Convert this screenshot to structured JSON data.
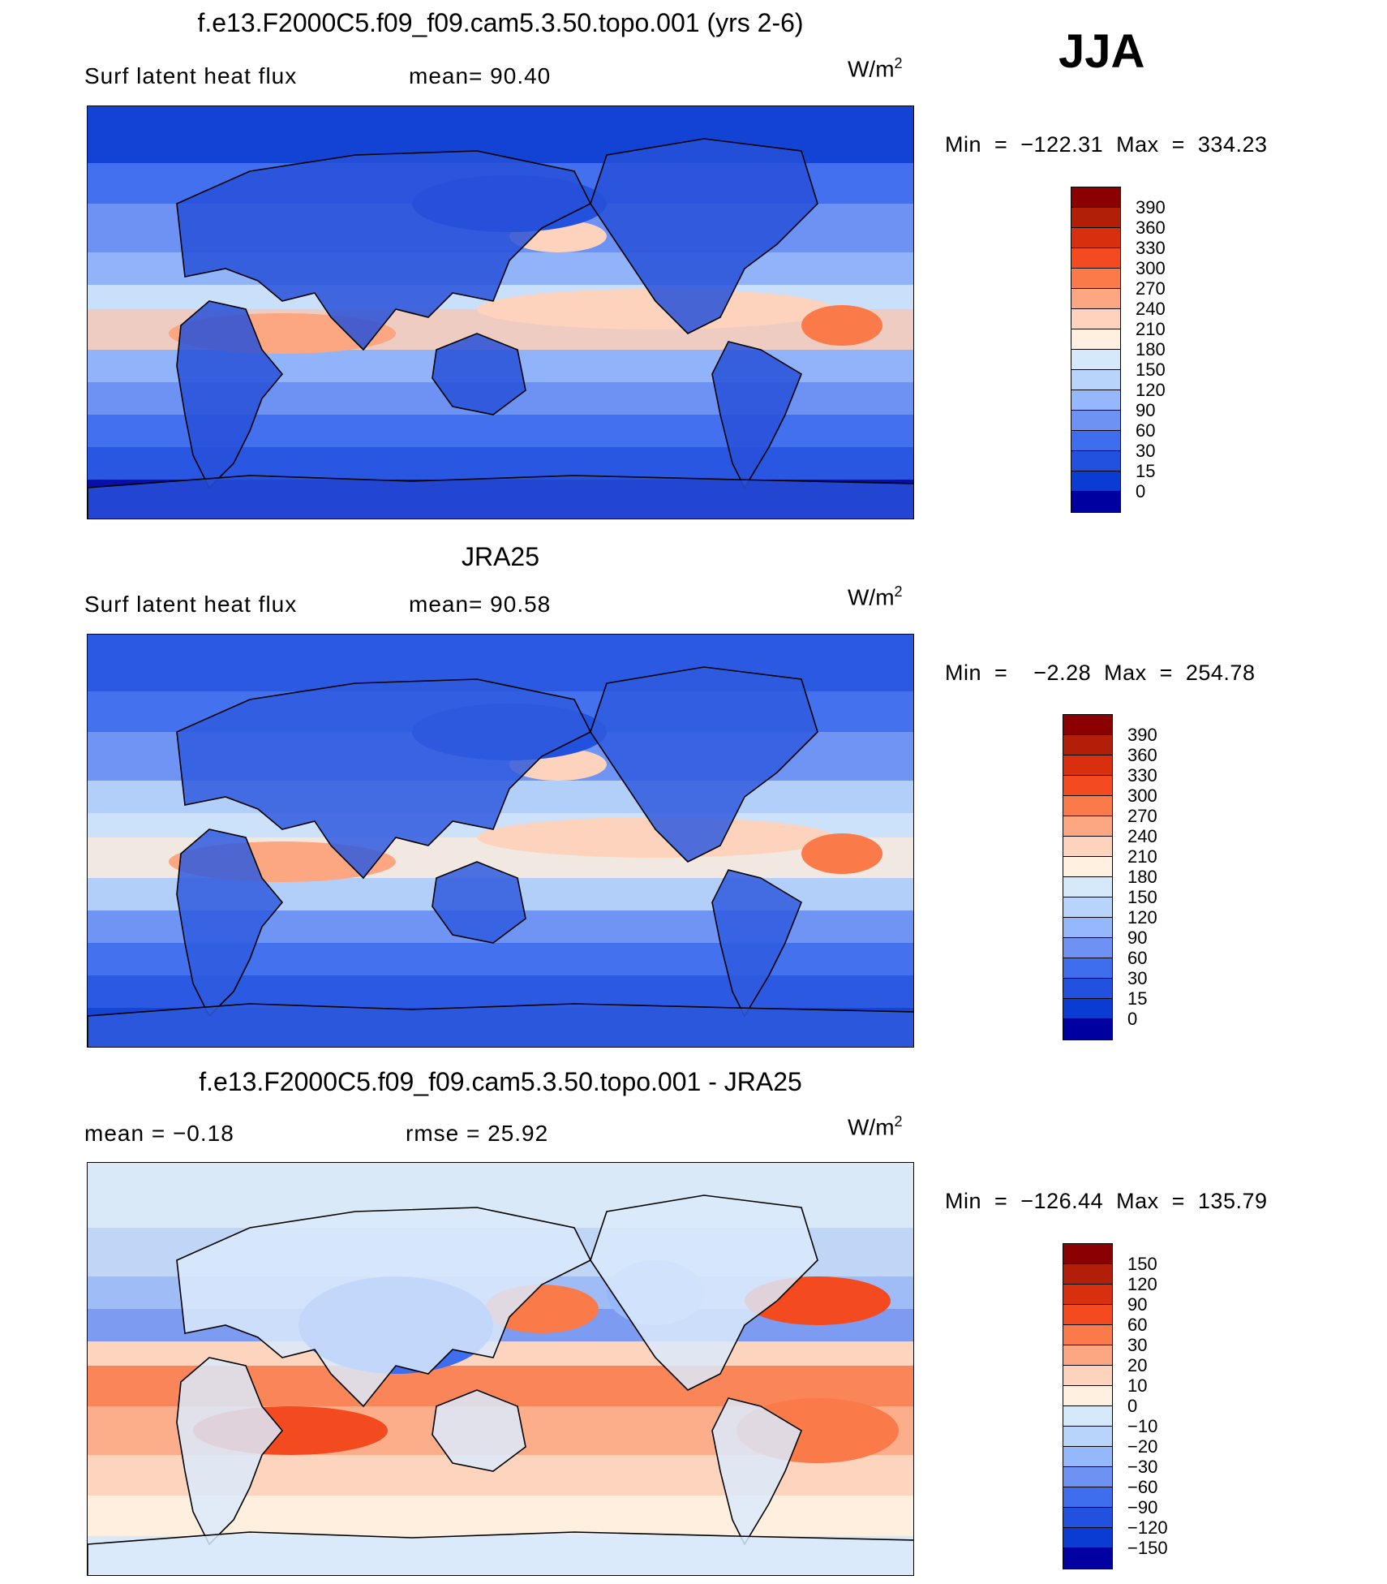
{
  "season": "JJA",
  "panels": [
    {
      "title": "f.e13.F2000C5.f09_f09.cam5.3.50.topo.001 (yrs 2-6)",
      "subtitle_left": "Surf  latent  heat  flux",
      "subtitle_mid": "mean=   90.40",
      "units_base": "W/m",
      "units_exp": "2",
      "minmax": "Min  =  −122.31  Max  =  334.23",
      "levels": [
        "390",
        "360",
        "330",
        "300",
        "270",
        "240",
        "210",
        "180",
        "150",
        "120",
        "90",
        "60",
        "30",
        "15",
        "0"
      ],
      "colors": [
        "#8b0000",
        "#b21e08",
        "#d8300f",
        "#f34a1f",
        "#fa7a4a",
        "#fca682",
        "#fdd3bd",
        "#fff0e0",
        "#d5e9fb",
        "#b8d4fb",
        "#95b7fb",
        "#6e92f4",
        "#3e6ded",
        "#2251e0",
        "#0a3bd2",
        "#0000a0"
      ],
      "ocean_color": "#6c93f0",
      "land_color": "#2750d8"
    },
    {
      "title": "JRA25",
      "subtitle_left": "Surf  latent  heat  flux",
      "subtitle_mid": "mean=   90.58",
      "units_base": "W/m",
      "units_exp": "2",
      "minmax": "Min  =    −2.28  Max  =  254.78",
      "levels": [
        "390",
        "360",
        "330",
        "300",
        "270",
        "240",
        "210",
        "180",
        "150",
        "120",
        "90",
        "60",
        "30",
        "15",
        "0"
      ],
      "colors": [
        "#8b0000",
        "#b21e08",
        "#d8300f",
        "#f34a1f",
        "#fa7a4a",
        "#fca682",
        "#fdd3bd",
        "#fff0e0",
        "#d5e9fb",
        "#b8d4fb",
        "#95b7fb",
        "#6e92f4",
        "#3e6ded",
        "#2251e0",
        "#0a3bd2",
        "#0000a0"
      ],
      "ocean_color": "#7ea2f3",
      "land_color": "#2f5ade"
    },
    {
      "title": "f.e13.F2000C5.f09_f09.cam5.3.50.topo.001 - JRA25",
      "subtitle_left": "mean  =    −0.18",
      "subtitle_mid": "rmse  =    25.92",
      "units_base": "W/m",
      "units_exp": "2",
      "minmax": "Min  =  −126.44  Max  =  135.79",
      "levels": [
        "150",
        "120",
        "90",
        "60",
        "30",
        "20",
        "10",
        "0",
        "−10",
        "−20",
        "−30",
        "−60",
        "−90",
        "−120",
        "−150"
      ],
      "colors": [
        "#8b0000",
        "#b21e08",
        "#d8300f",
        "#f34a1f",
        "#fa7a4a",
        "#fca682",
        "#fdd3bd",
        "#fff0e0",
        "#d5e9fb",
        "#b8d4fb",
        "#95b7fb",
        "#6e92f4",
        "#3e6ded",
        "#2251e0",
        "#0a3bd2",
        "#0000a0"
      ],
      "ocean_color": "#fde3d3",
      "land_color": "#dbeafb"
    }
  ]
}
